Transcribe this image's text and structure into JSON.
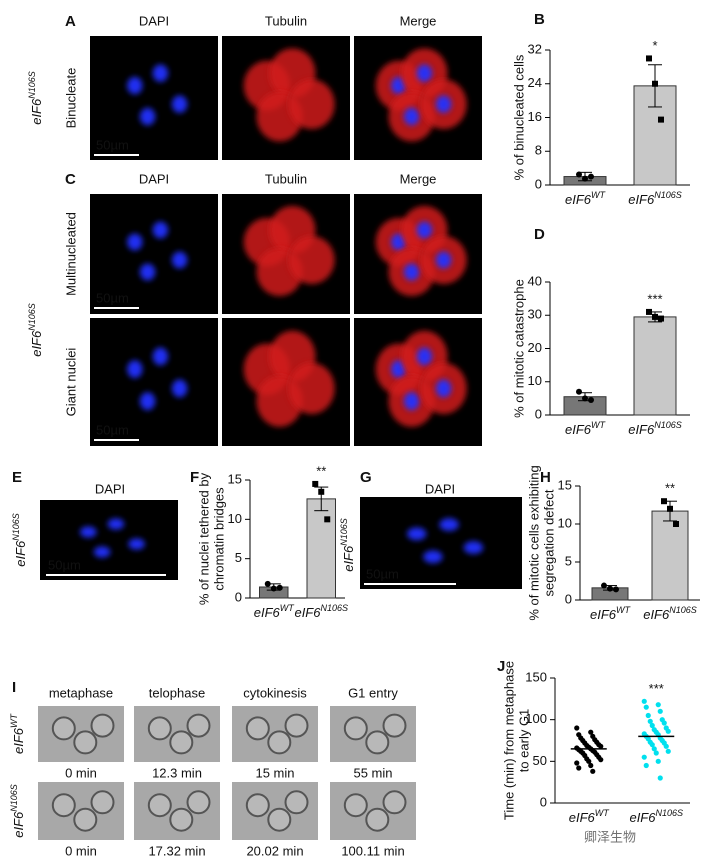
{
  "chart_data": [
    {
      "type": "bar",
      "panel_label": "B",
      "ylabel": [
        "% of binucleated cells"
      ],
      "categories": [
        {
          "base": "eIF6",
          "sup": "WT"
        },
        {
          "base": "eIF6",
          "sup": "N106S"
        }
      ],
      "values": [
        2,
        23.5
      ],
      "errors": [
        1,
        5
      ],
      "points": [
        [
          2.5,
          1.5,
          2
        ],
        [
          30,
          24,
          15.5
        ]
      ],
      "colors": [
        "#777777",
        "#c8c8c8"
      ],
      "annotations": [
        null,
        "*"
      ],
      "ylim": [
        0,
        32
      ],
      "yticks": [
        0,
        8,
        16,
        24,
        32
      ]
    },
    {
      "type": "bar",
      "panel_label": "D",
      "ylabel": [
        "% of mitotic catastrophe"
      ],
      "categories": [
        {
          "base": "eIF6",
          "sup": "WT"
        },
        {
          "base": "eIF6",
          "sup": "N106S"
        }
      ],
      "values": [
        5.5,
        29.5
      ],
      "errors": [
        1.2,
        1.5
      ],
      "points": [
        [
          7,
          5,
          4.5
        ],
        [
          31,
          29.5,
          29
        ]
      ],
      "colors": [
        "#777777",
        "#c8c8c8"
      ],
      "annotations": [
        null,
        "***"
      ],
      "ylim": [
        0,
        40
      ],
      "yticks": [
        0,
        10,
        20,
        30,
        40
      ]
    },
    {
      "type": "bar",
      "panel_label": "F",
      "ylabel": [
        "% of nuclei tethered by",
        "chromatin bridges"
      ],
      "categories": [
        {
          "base": "eIF6",
          "sup": "WT"
        },
        {
          "base": "eIF6",
          "sup": "N106S"
        }
      ],
      "values": [
        1.4,
        12.6
      ],
      "errors": [
        0.4,
        1.5
      ],
      "points": [
        [
          1.8,
          1.2,
          1.3
        ],
        [
          14.5,
          13.5,
          10
        ]
      ],
      "colors": [
        "#777777",
        "#c8c8c8"
      ],
      "annotations": [
        null,
        "**"
      ],
      "ylim": [
        0,
        15
      ],
      "yticks": [
        0,
        5,
        10,
        15
      ]
    },
    {
      "type": "bar",
      "panel_label": "H",
      "ylabel": [
        "% of mitotic cells exhibiting",
        "segregation defect"
      ],
      "categories": [
        {
          "base": "eIF6",
          "sup": "WT"
        },
        {
          "base": "eIF6",
          "sup": "N106S"
        }
      ],
      "values": [
        1.6,
        11.7
      ],
      "errors": [
        0.3,
        1.3
      ],
      "points": [
        [
          1.9,
          1.5,
          1.4
        ],
        [
          13,
          12,
          10
        ]
      ],
      "colors": [
        "#777777",
        "#c8c8c8"
      ],
      "annotations": [
        null,
        "**"
      ],
      "ylim": [
        0,
        15
      ],
      "yticks": [
        0,
        5,
        10,
        15
      ]
    },
    {
      "type": "dot",
      "panel_label": "J",
      "ylabel": [
        "Time (min) from metaphase",
        "to early G1"
      ],
      "categories": [
        {
          "base": "eIF6",
          "sup": "WT"
        },
        {
          "base": "eIF6",
          "sup": "N106S"
        }
      ],
      "points": [
        [
          90,
          85,
          82,
          80,
          78,
          76,
          75,
          73,
          72,
          70,
          69,
          68,
          67,
          66,
          65,
          64,
          63,
          62,
          61,
          60,
          58,
          57,
          55,
          53,
          52,
          50,
          48,
          45,
          42,
          38
        ],
        [
          122,
          118,
          115,
          110,
          105,
          100,
          98,
          96,
          93,
          90,
          88,
          86,
          85,
          83,
          82,
          80,
          78,
          77,
          75,
          73,
          72,
          70,
          68,
          65,
          62,
          60,
          55,
          50,
          45,
          30
        ]
      ],
      "means": [
        65,
        80
      ],
      "colors": [
        "#000000",
        "#00e0ee"
      ],
      "annotations": [
        null,
        "***"
      ],
      "ylim": [
        0,
        150
      ],
      "yticks": [
        0,
        50,
        100,
        150
      ]
    }
  ],
  "image_panels": [
    {
      "label": "A",
      "columns": [
        "DAPI",
        "Tubulin",
        "Merge"
      ],
      "side_label": {
        "base": "eIF6",
        "sup": "N106S"
      },
      "row_labels": [
        "Binucleate"
      ],
      "scale_bars": [
        "50µm"
      ]
    },
    {
      "label": "C",
      "columns": [
        "DAPI",
        "Tubulin",
        "Merge"
      ],
      "side_label": {
        "base": "eIF6",
        "sup": "N106S"
      },
      "row_labels": [
        "Multinucleated",
        "Giant nuclei"
      ],
      "scale_bars": [
        "50µm",
        "50µm"
      ]
    },
    {
      "label": "E",
      "columns": [
        "DAPI"
      ],
      "side_label": {
        "base": "eIF6",
        "sup": "N106S"
      },
      "scale_bars": [
        "50µm"
      ]
    },
    {
      "label": "G",
      "columns": [
        "DAPI"
      ],
      "side_label": {
        "base": "eIF6",
        "sup": "N106S"
      },
      "scale_bars": [
        "50µm"
      ]
    },
    {
      "label": "I",
      "columns": [
        "metaphase",
        "telophase",
        "cytokinesis",
        "G1 entry"
      ],
      "rows": [
        {
          "side_label": {
            "base": "eIF6",
            "sup": "WT"
          },
          "times": [
            "0 min",
            "12.3  min",
            "15 min",
            "55 min"
          ]
        },
        {
          "side_label": {
            "base": "eIF6",
            "sup": "N106S"
          },
          "times": [
            "0 min",
            "17.32 min",
            "20.02 min",
            "100.11 min"
          ]
        }
      ]
    }
  ],
  "watermark": "卿泽生物"
}
